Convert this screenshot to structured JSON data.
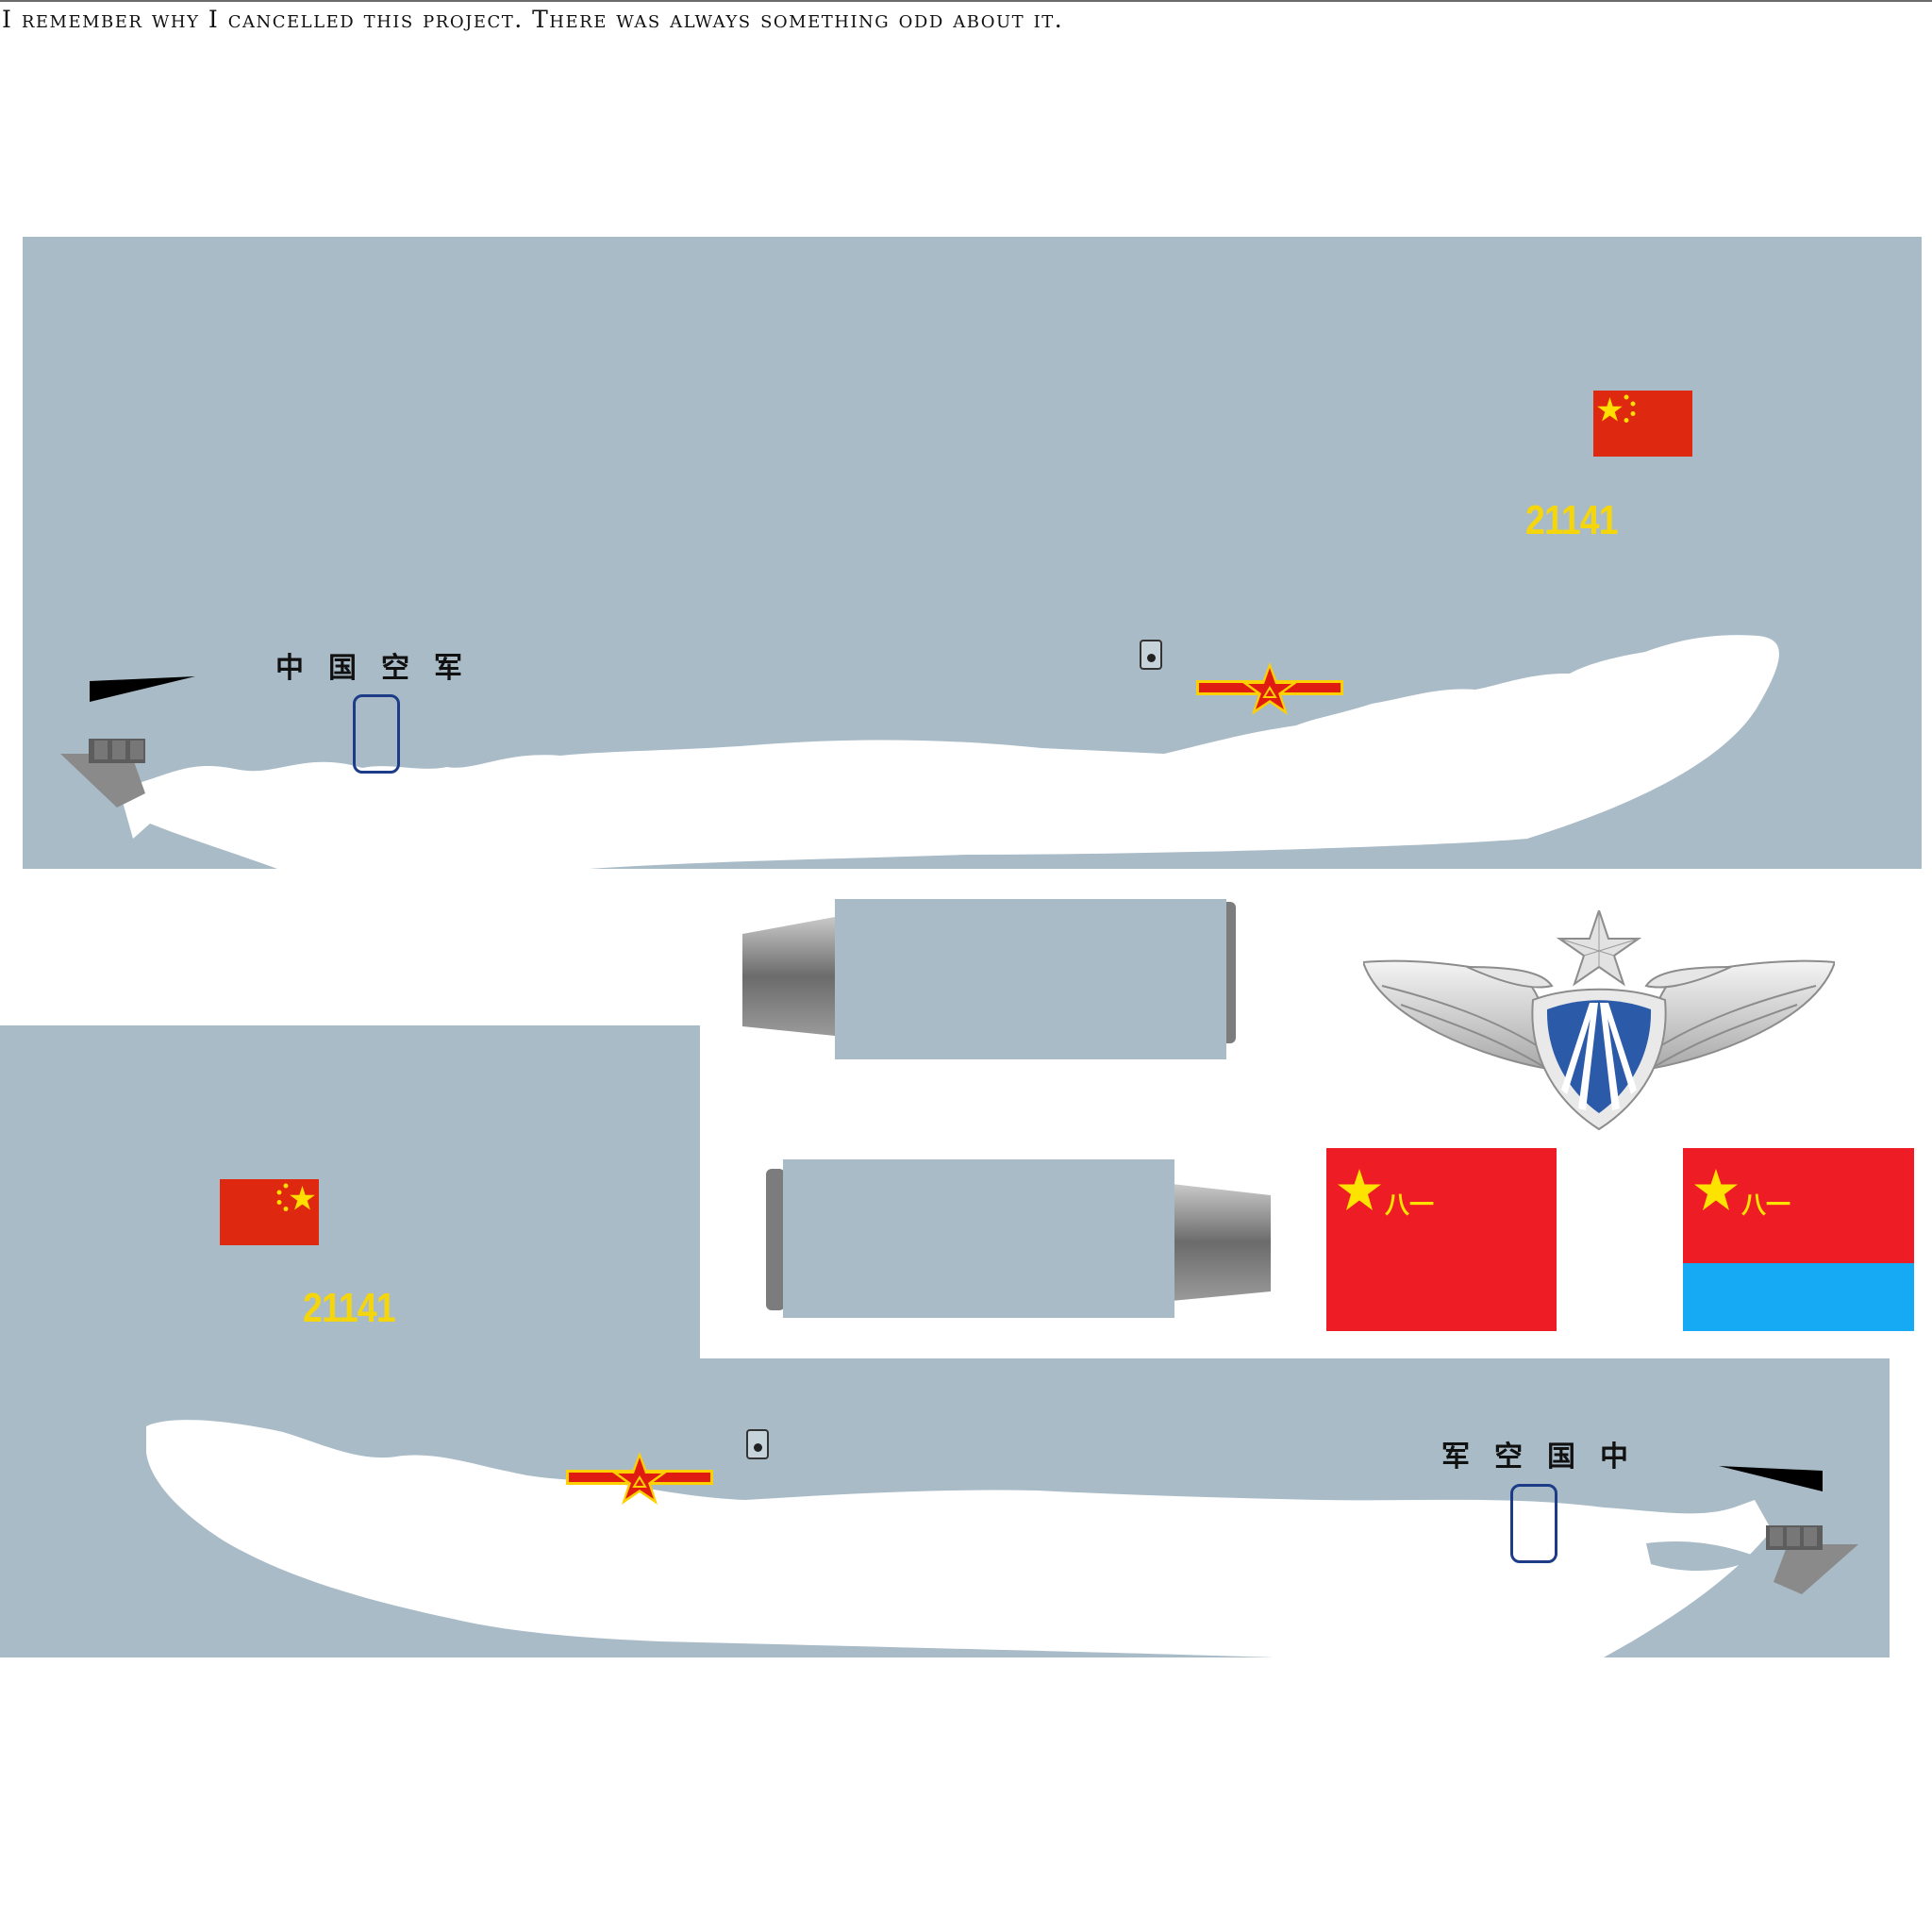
{
  "caption": "I remember why I cancelled this project. There was always something odd about it.",
  "fuselage_left": {
    "name_text": "中国空军",
    "serial": "21141"
  },
  "fuselage_right": {
    "name_text": "军空国中",
    "serial": "21141"
  },
  "flags": {
    "army_flag_text": "八一",
    "air_force_flag_text": "八一"
  },
  "icons": [
    "prc-flag-icon",
    "roundel-icon",
    "air-force-wings-emblem-icon",
    "army-flag-icon",
    "air-force-flag-icon",
    "engine-nacelle-icon"
  ],
  "colors": {
    "panel": "#a9bbc7",
    "serial": "#f5d60c",
    "flag_red": "#de2910",
    "bayi_red": "#ee1c25",
    "sky_blue": "#16a9f4",
    "door_outline": "#1d3c88"
  }
}
